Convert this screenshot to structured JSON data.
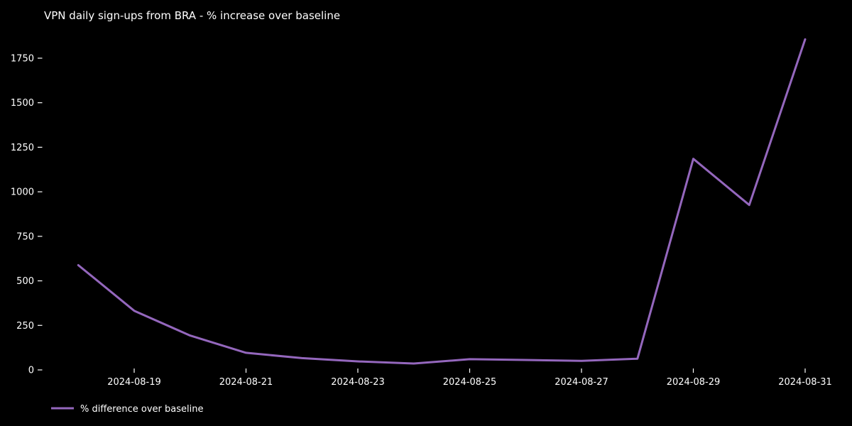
{
  "page": {
    "background_color": "#000000",
    "text_color": "#ffffff"
  },
  "chart_data": {
    "type": "line",
    "title": "VPN daily sign-ups from BRA - % increase over baseline",
    "x": [
      "2024-08-18",
      "2024-08-19",
      "2024-08-20",
      "2024-08-21",
      "2024-08-22",
      "2024-08-23",
      "2024-08-24",
      "2024-08-25",
      "2024-08-26",
      "2024-08-27",
      "2024-08-28",
      "2024-08-29",
      "2024-08-30",
      "2024-08-31"
    ],
    "series": [
      {
        "name": "% difference over baseline",
        "values": [
          588,
          332,
          193,
          96,
          66,
          48,
          36,
          60,
          56,
          51,
          63,
          1185,
          926,
          1856
        ]
      }
    ],
    "xtick_labels": [
      "2024-08-19",
      "2024-08-21",
      "2024-08-23",
      "2024-08-25",
      "2024-08-27",
      "2024-08-29",
      "2024-08-31"
    ],
    "yticks": [
      0,
      250,
      500,
      750,
      1000,
      1250,
      1500,
      1750
    ],
    "ylim": [
      0,
      1880
    ],
    "grid": false,
    "axis_spines": false,
    "legend": {
      "position": "lower-left",
      "entries": [
        "% difference over baseline"
      ]
    },
    "colors": {
      "line": "#9467bd",
      "background": "#000000",
      "text": "#ffffff"
    }
  }
}
